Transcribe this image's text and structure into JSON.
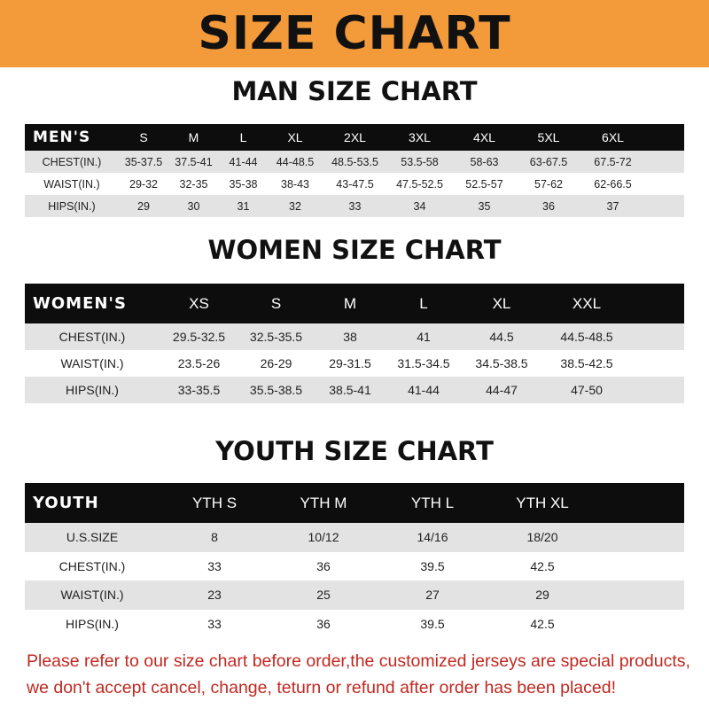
{
  "header": {
    "title": "SIZE CHART",
    "color": "#f39a3a"
  },
  "men": {
    "title": "MAN SIZE CHART",
    "label": "MEN'S",
    "sizes": [
      "S",
      "M",
      "L",
      "XL",
      "2XL",
      "3XL",
      "4XL",
      "5XL",
      "6XL"
    ],
    "rows": [
      {
        "label": "CHEST(IN.)",
        "values": [
          "35-37.5",
          "37.5-41",
          "41-44",
          "44-48.5",
          "48.5-53.5",
          "53.5-58",
          "58-63",
          "63-67.5",
          "67.5-72"
        ]
      },
      {
        "label": "WAIST(IN.)",
        "values": [
          "29-32",
          "32-35",
          "35-38",
          "38-43",
          "43-47.5",
          "47.5-52.5",
          "52.5-57",
          "57-62",
          "62-66.5"
        ]
      },
      {
        "label": "HIPS(IN.)",
        "values": [
          "29",
          "30",
          "31",
          "32",
          "33",
          "34",
          "35",
          "36",
          "37"
        ]
      }
    ]
  },
  "women": {
    "title": "WOMEN SIZE CHART",
    "label": "WOMEN'S",
    "sizes": [
      "XS",
      "S",
      "M",
      "L",
      "XL",
      "XXL"
    ],
    "rows": [
      {
        "label": "CHEST(IN.)",
        "values": [
          "29.5-32.5",
          "32.5-35.5",
          "38",
          "41",
          "44.5",
          "44.5-48.5"
        ]
      },
      {
        "label": "WAIST(IN.)",
        "values": [
          "23.5-26",
          "26-29",
          "29-31.5",
          "31.5-34.5",
          "34.5-38.5",
          "38.5-42.5"
        ]
      },
      {
        "label": "HIPS(IN.)",
        "values": [
          "33-35.5",
          "35.5-38.5",
          "38.5-41",
          "41-44",
          "44-47",
          "47-50"
        ]
      }
    ]
  },
  "youth": {
    "title": "YOUTH SIZE CHART",
    "label": "YOUTH",
    "sizes": [
      "YTH S",
      "YTH M",
      "YTH L",
      "YTH XL"
    ],
    "rows": [
      {
        "label": "U.S.SIZE",
        "values": [
          "8",
          "10/12",
          "14/16",
          "18/20"
        ]
      },
      {
        "label": "CHEST(IN.)",
        "values": [
          "33",
          "36",
          "39.5",
          "42.5"
        ]
      },
      {
        "label": "WAIST(IN.)",
        "values": [
          "23",
          "25",
          "27",
          "29"
        ]
      },
      {
        "label": "HIPS(IN.)",
        "values": [
          "33",
          "36",
          "39.5",
          "42.5"
        ]
      }
    ]
  },
  "notice": {
    "line1": "Please refer to our size chart before order,the customized jerseys are special products,",
    "line2": "we don't accept cancel, change, teturn or refund after order has been placed!",
    "color": "#c0281f"
  }
}
